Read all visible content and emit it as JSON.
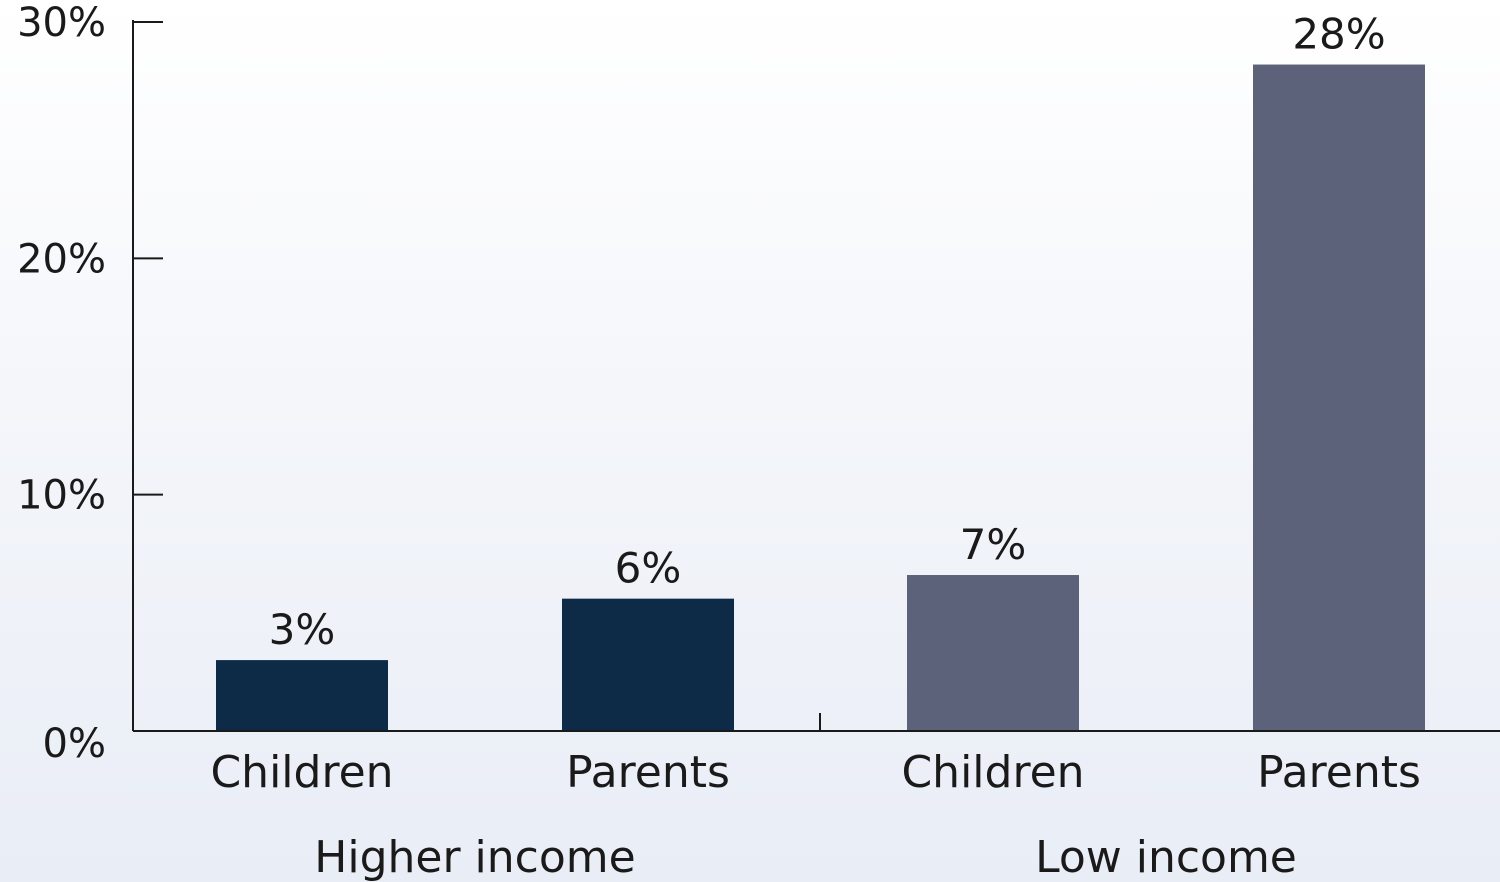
{
  "chart_data": {
    "type": "bar",
    "title": "",
    "xlabel": "",
    "ylabel": "",
    "ylim": [
      0,
      30
    ],
    "yticks": [
      0,
      10,
      20,
      30
    ],
    "ytick_labels": [
      "0%",
      "10%",
      "20%",
      "30%"
    ],
    "grid": false,
    "legend": "none",
    "groups": [
      {
        "label": "Higher income",
        "color": "#0d2a47",
        "bars": [
          {
            "category": "Children",
            "value": 3,
            "label": "3%"
          },
          {
            "category": "Parents",
            "value": 5.6,
            "label": "6%"
          }
        ]
      },
      {
        "label": "Low income",
        "color": "#5c627a",
        "bars": [
          {
            "category": "Children",
            "value": 6.6,
            "label": "7%"
          },
          {
            "category": "Parents",
            "value": 28.2,
            "label": "28%"
          }
        ]
      }
    ]
  }
}
